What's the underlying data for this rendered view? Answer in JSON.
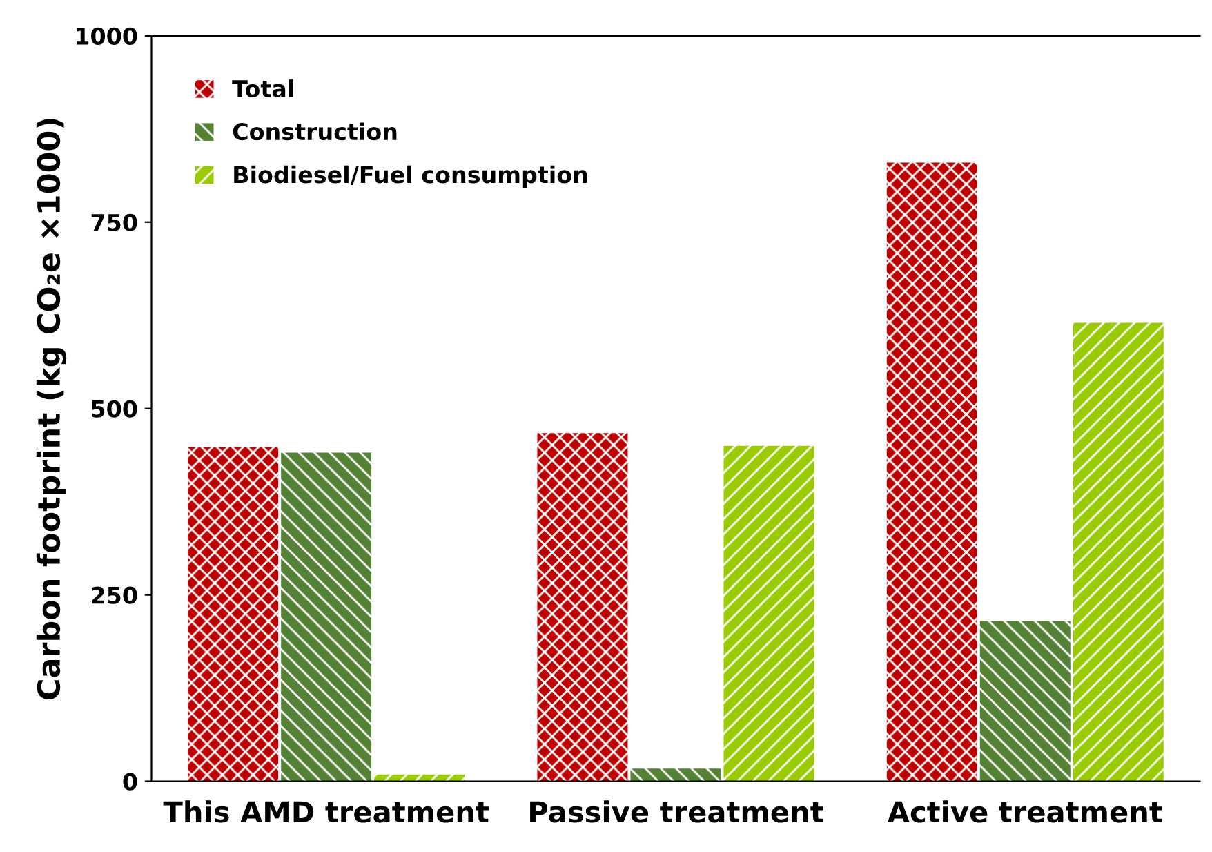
{
  "chart_data": {
    "type": "bar",
    "ylabel": "Carbon footprint (kg CO₂e ×1000)",
    "categories": [
      "This AMD treatment",
      "Passive treatment",
      "Active treatment"
    ],
    "series": [
      {
        "name": "Total",
        "color": "#c00000",
        "values": [
          448,
          467,
          830
        ]
      },
      {
        "name": "Construction",
        "color": "#548235",
        "values": [
          441,
          17,
          215
        ]
      },
      {
        "name": "Biodiesel/Fuel consumption",
        "color": "#99cc00",
        "values": [
          9,
          450,
          615
        ]
      }
    ],
    "ylim": [
      0,
      1000
    ],
    "yticks": [
      0,
      250,
      500,
      750,
      1000
    ],
    "grid": false,
    "legend": "top left"
  }
}
